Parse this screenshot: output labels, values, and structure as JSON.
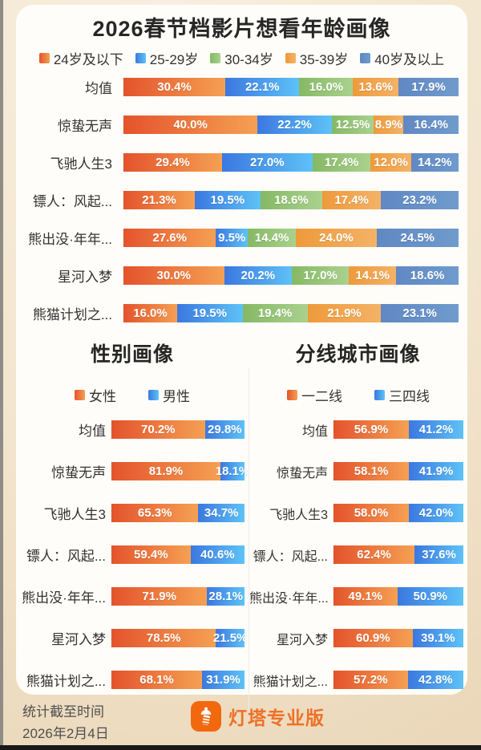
{
  "page": {
    "title": "2026春节档影片想看年龄画像",
    "section_titles": {
      "gender": "性别画像",
      "city": "分线城市画像"
    },
    "footer": {
      "caption_line1": "统计截至时间",
      "caption_line2": "2026年2月4日",
      "brand": "灯塔专业版"
    }
  },
  "colors": {
    "background": "#f3e6cf",
    "card": "#fffdf9",
    "title_text": "#262626",
    "label_text": "#333333",
    "value_text": "#ffffff",
    "brand_orange": "#f2680f",
    "brand_text_orange": "#ed7127",
    "segments": [
      {
        "name": "orange",
        "from": "#e4532c",
        "to": "#f5a053"
      },
      {
        "name": "blue",
        "from": "#3b78e0",
        "to": "#5ec2f7"
      },
      {
        "name": "green",
        "from": "#85b964",
        "to": "#aad18e"
      },
      {
        "name": "amber",
        "from": "#ee9a3a",
        "to": "#f4b267"
      },
      {
        "name": "steel-blue",
        "from": "#6088c3",
        "to": "#6f9bcd"
      }
    ]
  },
  "chart_data": [
    {
      "type": "bar",
      "variant": "horizontal-stacked",
      "title": "2026春节档影片想看年龄画像",
      "unit": "%",
      "xlim": [
        0,
        100
      ],
      "legend_position": "top",
      "value_labels": "inside",
      "legend": [
        "24岁及以下",
        "25-29岁",
        "30-34岁",
        "35-39岁",
        "40岁及以上"
      ],
      "palette": [
        0,
        1,
        2,
        3,
        4
      ],
      "categories": [
        "均值",
        "惊蛰无声",
        "飞驰人生3",
        "镖人：风起...",
        "熊出没·年年...",
        "星河入梦",
        "熊猫计划之..."
      ],
      "series": [
        {
          "name": "24岁及以下",
          "values": [
            30.4,
            40.0,
            29.4,
            21.3,
            27.6,
            30.0,
            16.0
          ]
        },
        {
          "name": "25-29岁",
          "values": [
            22.1,
            22.2,
            27.0,
            19.5,
            9.5,
            20.2,
            19.5
          ]
        },
        {
          "name": "30-34岁",
          "values": [
            16.0,
            12.5,
            17.4,
            18.6,
            14.4,
            17.0,
            19.4
          ]
        },
        {
          "name": "35-39岁",
          "values": [
            13.6,
            8.9,
            12.0,
            17.4,
            24.0,
            14.1,
            21.9
          ]
        },
        {
          "name": "40岁及以上",
          "values": [
            17.9,
            16.4,
            14.2,
            23.2,
            24.5,
            18.6,
            23.1
          ]
        }
      ]
    },
    {
      "type": "bar",
      "variant": "horizontal-stacked",
      "title": "性别画像",
      "unit": "%",
      "xlim": [
        0,
        100
      ],
      "legend_position": "top",
      "value_labels": "inside",
      "legend": [
        "女性",
        "男性"
      ],
      "palette": [
        0,
        1
      ],
      "categories": [
        "均值",
        "惊蛰无声",
        "飞驰人生3",
        "镖人：风起...",
        "熊出没·年年...",
        "星河入梦",
        "熊猫计划之..."
      ],
      "series": [
        {
          "name": "女性",
          "values": [
            70.2,
            81.9,
            65.3,
            59.4,
            71.9,
            78.5,
            68.1
          ]
        },
        {
          "name": "男性",
          "values": [
            29.8,
            18.1,
            34.7,
            40.6,
            28.1,
            21.5,
            31.9
          ]
        }
      ]
    },
    {
      "type": "bar",
      "variant": "horizontal-stacked",
      "title": "分线城市画像",
      "unit": "%",
      "xlim": [
        0,
        100
      ],
      "legend_position": "top",
      "value_labels": "inside",
      "legend": [
        "一二线",
        "三四线"
      ],
      "palette": [
        0,
        1
      ],
      "categories": [
        "均值",
        "惊蛰无声",
        "飞驰人生3",
        "镖人：风起...",
        "熊出没·年年...",
        "星河入梦",
        "熊猫计划之..."
      ],
      "series": [
        {
          "name": "一二线",
          "values": [
            56.9,
            58.1,
            58.0,
            62.4,
            49.1,
            60.9,
            57.2
          ]
        },
        {
          "name": "三四线",
          "values": [
            41.2,
            41.9,
            42.0,
            37.6,
            50.9,
            39.1,
            42.8
          ]
        }
      ]
    }
  ]
}
